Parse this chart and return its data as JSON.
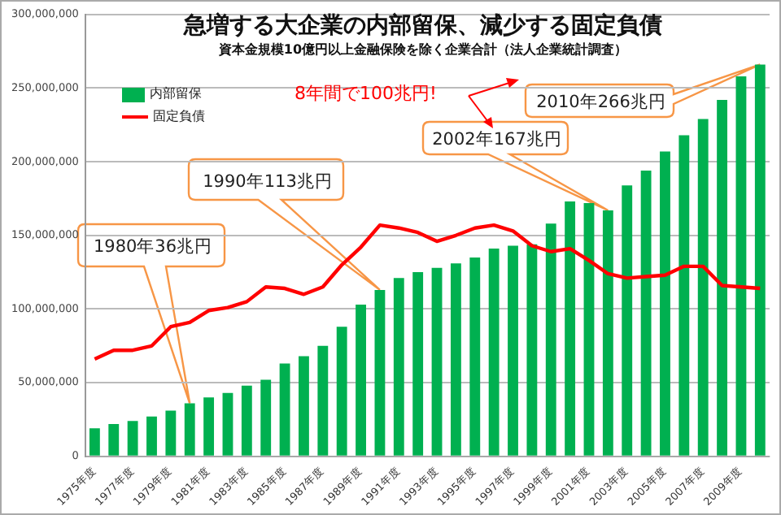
{
  "chart_data": {
    "type": "bar",
    "title": "急増する大企業の内部留保、減少する固定負債",
    "subtitle": "資本金規模10億円以上金融保険を除く企業合計（法人企業統計調査）",
    "categories": [
      "1975年度",
      null,
      "1977年度",
      null,
      "1979年度",
      null,
      "1981年度",
      null,
      "1983年度",
      null,
      "1985年度",
      null,
      "1987年度",
      null,
      "1989年度",
      null,
      "1991年度",
      null,
      "1993年度",
      null,
      "1995年度",
      null,
      "1997年度",
      null,
      "1999年度",
      null,
      "2001年度",
      null,
      "2003年度",
      null,
      "2005年度",
      null,
      "2007年度",
      null,
      "2009年度",
      null
    ],
    "series": [
      {
        "name": "内部留保",
        "color": "#00b050",
        "values": [
          19000000,
          22000000,
          24000000,
          27000000,
          31000000,
          36000000,
          40000000,
          43000000,
          48000000,
          52000000,
          63000000,
          68000000,
          75000000,
          88000000,
          103000000,
          113000000,
          121000000,
          125000000,
          128000000,
          131000000,
          135000000,
          141000000,
          143000000,
          144000000,
          158000000,
          173000000,
          172000000,
          167000000,
          184000000,
          194000000,
          207000000,
          218000000,
          229000000,
          242000000,
          258000000,
          266000000
        ]
      },
      {
        "name": "固定負債",
        "type": "line",
        "color": "#ff0000",
        "values": [
          66000000,
          72000000,
          72000000,
          75000000,
          88000000,
          91000000,
          99000000,
          101000000,
          105000000,
          115000000,
          114000000,
          110000000,
          115000000,
          130000000,
          142000000,
          157000000,
          155000000,
          152000000,
          146000000,
          150000000,
          155000000,
          157000000,
          153000000,
          143000000,
          139000000,
          141000000,
          133000000,
          124000000,
          121000000,
          122000000,
          123000000,
          129000000,
          129000000,
          116000000,
          115000000,
          114000000
        ]
      }
    ],
    "ylim": [
      0,
      300000000
    ],
    "yticks": [
      {
        "value": 0,
        "label": "0"
      },
      {
        "value": 50000000,
        "label": "50,000,000"
      },
      {
        "value": 100000000,
        "label": "100,000,000"
      },
      {
        "value": 150000000,
        "label": "150,000,000"
      },
      {
        "value": 200000000,
        "label": "200,000,000"
      },
      {
        "value": 250000000,
        "label": "250,000,000"
      },
      {
        "value": 300000000,
        "label": "300,000,000"
      }
    ],
    "grid": "y",
    "legend": "top left",
    "marker": "none",
    "annotations": [
      "1980年36兆円",
      "1990年113兆円",
      "2002年167兆円",
      "2010年266兆円",
      "8年間で100兆円!"
    ]
  }
}
